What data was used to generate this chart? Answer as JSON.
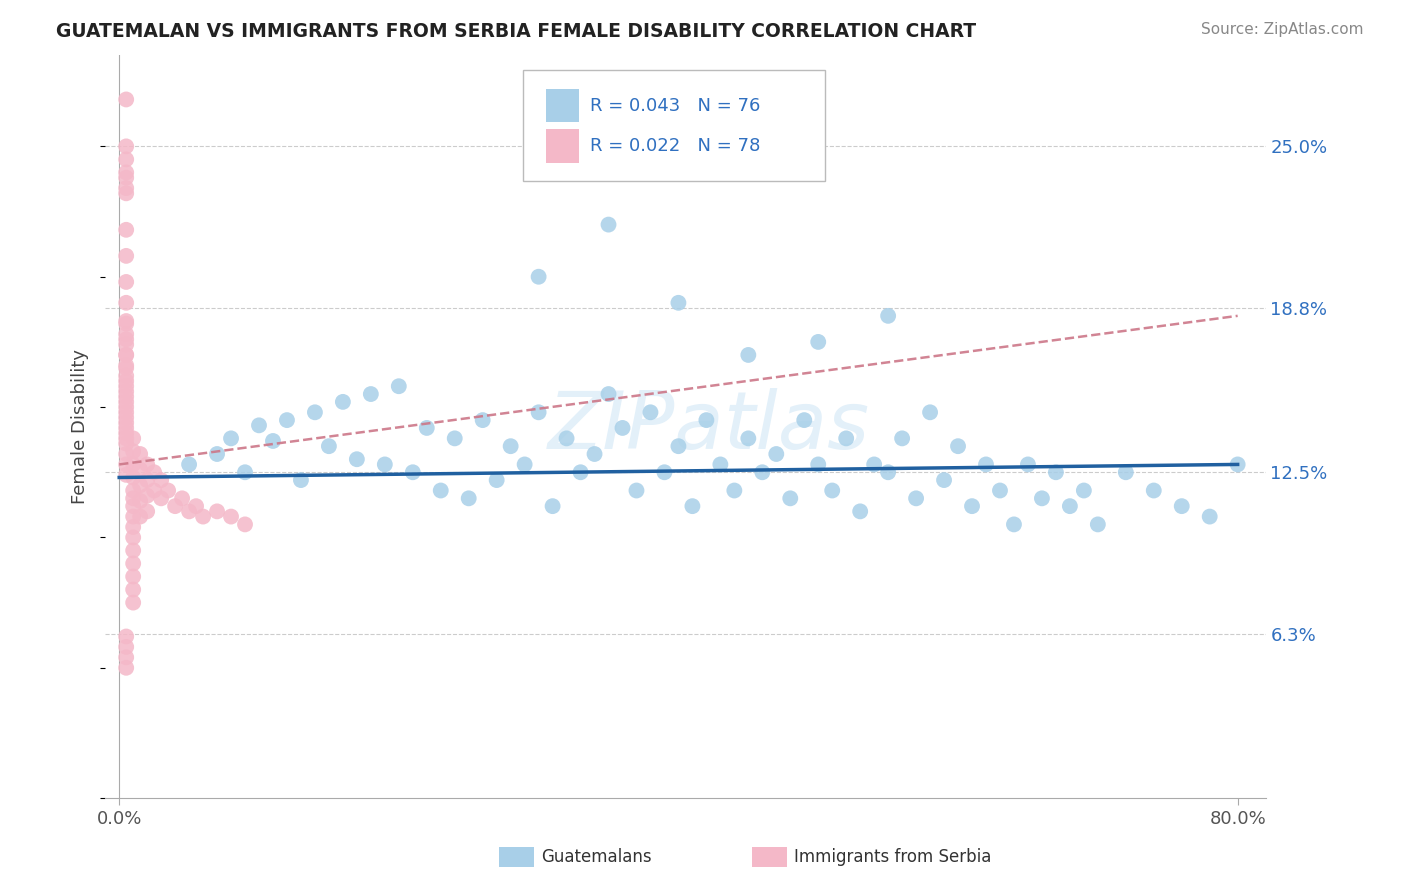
{
  "title": "GUATEMALAN VS IMMIGRANTS FROM SERBIA FEMALE DISABILITY CORRELATION CHART",
  "source": "Source: ZipAtlas.com",
  "ylabel": "Female Disability",
  "ytick_labels": [
    "6.3%",
    "12.5%",
    "18.8%",
    "25.0%"
  ],
  "ytick_values": [
    0.063,
    0.125,
    0.188,
    0.25
  ],
  "xmin": -0.01,
  "xmax": 0.82,
  "ymin": 0.0,
  "ymax": 0.285,
  "color_blue": "#a8cfe8",
  "color_pink": "#f4b8c8",
  "color_blue_line": "#2060a0",
  "color_pink_line": "#cc7788",
  "color_text_blue": "#3070c0",
  "watermark": "ZIPatlas",
  "blue_scatter_x": [
    0.05,
    0.07,
    0.08,
    0.09,
    0.1,
    0.11,
    0.12,
    0.13,
    0.14,
    0.15,
    0.16,
    0.17,
    0.18,
    0.19,
    0.2,
    0.21,
    0.22,
    0.23,
    0.24,
    0.25,
    0.26,
    0.27,
    0.28,
    0.29,
    0.3,
    0.31,
    0.32,
    0.33,
    0.34,
    0.35,
    0.36,
    0.37,
    0.38,
    0.39,
    0.4,
    0.41,
    0.42,
    0.43,
    0.44,
    0.45,
    0.46,
    0.47,
    0.48,
    0.49,
    0.5,
    0.51,
    0.52,
    0.53,
    0.54,
    0.55,
    0.56,
    0.57,
    0.58,
    0.59,
    0.6,
    0.61,
    0.62,
    0.63,
    0.64,
    0.65,
    0.66,
    0.67,
    0.68,
    0.69,
    0.7,
    0.72,
    0.74,
    0.76,
    0.78,
    0.8,
    0.3,
    0.35,
    0.4,
    0.45,
    0.5,
    0.55
  ],
  "blue_scatter_y": [
    0.128,
    0.132,
    0.138,
    0.125,
    0.143,
    0.137,
    0.145,
    0.122,
    0.148,
    0.135,
    0.152,
    0.13,
    0.155,
    0.128,
    0.158,
    0.125,
    0.142,
    0.118,
    0.138,
    0.115,
    0.145,
    0.122,
    0.135,
    0.128,
    0.148,
    0.112,
    0.138,
    0.125,
    0.132,
    0.155,
    0.142,
    0.118,
    0.148,
    0.125,
    0.135,
    0.112,
    0.145,
    0.128,
    0.118,
    0.138,
    0.125,
    0.132,
    0.115,
    0.145,
    0.128,
    0.118,
    0.138,
    0.11,
    0.128,
    0.125,
    0.138,
    0.115,
    0.148,
    0.122,
    0.135,
    0.112,
    0.128,
    0.118,
    0.105,
    0.128,
    0.115,
    0.125,
    0.112,
    0.118,
    0.105,
    0.125,
    0.118,
    0.112,
    0.108,
    0.128,
    0.2,
    0.22,
    0.19,
    0.17,
    0.175,
    0.185
  ],
  "pink_scatter_x": [
    0.005,
    0.005,
    0.005,
    0.005,
    0.005,
    0.005,
    0.005,
    0.005,
    0.005,
    0.005,
    0.005,
    0.005,
    0.005,
    0.005,
    0.005,
    0.005,
    0.005,
    0.005,
    0.005,
    0.005,
    0.01,
    0.01,
    0.01,
    0.01,
    0.01,
    0.01,
    0.01,
    0.01,
    0.01,
    0.01,
    0.01,
    0.01,
    0.01,
    0.01,
    0.01,
    0.015,
    0.015,
    0.015,
    0.015,
    0.015,
    0.02,
    0.02,
    0.02,
    0.02,
    0.025,
    0.025,
    0.03,
    0.03,
    0.035,
    0.04,
    0.045,
    0.05,
    0.055,
    0.06,
    0.07,
    0.08,
    0.09,
    0.005,
    0.005,
    0.005,
    0.005,
    0.005,
    0.005,
    0.005,
    0.005,
    0.005,
    0.005,
    0.005,
    0.005,
    0.005,
    0.005,
    0.005,
    0.005,
    0.005,
    0.005,
    0.005,
    0.005,
    0.005
  ],
  "pink_scatter_y": [
    0.268,
    0.25,
    0.232,
    0.218,
    0.208,
    0.198,
    0.19,
    0.183,
    0.176,
    0.17,
    0.165,
    0.16,
    0.156,
    0.152,
    0.148,
    0.144,
    0.14,
    0.136,
    0.132,
    0.128,
    0.138,
    0.133,
    0.128,
    0.123,
    0.118,
    0.115,
    0.112,
    0.108,
    0.104,
    0.1,
    0.095,
    0.09,
    0.085,
    0.08,
    0.075,
    0.132,
    0.126,
    0.12,
    0.114,
    0.108,
    0.128,
    0.122,
    0.116,
    0.11,
    0.125,
    0.118,
    0.122,
    0.115,
    0.118,
    0.112,
    0.115,
    0.11,
    0.112,
    0.108,
    0.11,
    0.108,
    0.105,
    0.245,
    0.24,
    0.238,
    0.234,
    0.062,
    0.058,
    0.054,
    0.05,
    0.182,
    0.178,
    0.174,
    0.17,
    0.166,
    0.162,
    0.158,
    0.154,
    0.15,
    0.146,
    0.142,
    0.138,
    0.124
  ],
  "blue_line_x": [
    0.0,
    0.8
  ],
  "blue_line_y": [
    0.123,
    0.128
  ],
  "pink_line_x": [
    0.0,
    0.8
  ],
  "pink_line_y": [
    0.128,
    0.185
  ]
}
